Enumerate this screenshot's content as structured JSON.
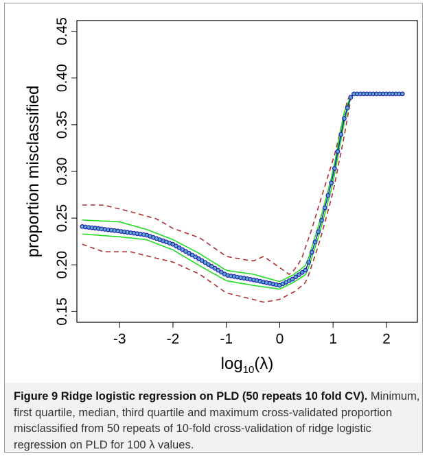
{
  "figure": {
    "label": "Figure 9",
    "title": "Ridge logistic regression on PLD (50 repeats 10 fold CV).",
    "caption": "Minimum, first quartile, median, third quartile and maximum cross-validated proportion misclassified from 50 repeats of 10-fold cross-validation of ridge logistic regression on PLD for 100 λ values."
  },
  "colors": {
    "median": "#1f1fb5",
    "median_marker_fill": "#5fa8c8",
    "quartile": "#22dd22",
    "extreme": "#aa3030",
    "frame": "#000000"
  },
  "chart_data": {
    "type": "line",
    "xlabel_base": "log",
    "xlabel_sub": "10",
    "xlabel_arg": "(λ)",
    "ylabel": "proportion misclassified",
    "xlim": [
      -3.7,
      2.3
    ],
    "ylim": [
      0.15,
      0.45
    ],
    "xticks": [
      -3,
      -2,
      -1,
      0,
      1,
      2
    ],
    "xtick_labels": [
      "-3",
      "-2",
      "-1",
      "0",
      "1",
      "2"
    ],
    "yticks": [
      0.15,
      0.2,
      0.25,
      0.3,
      0.35,
      0.4,
      0.45
    ],
    "ytick_labels": [
      "0.15",
      "0.20",
      "0.25",
      "0.30",
      "0.35",
      "0.40",
      "0.45"
    ],
    "grid": false,
    "legend": "none",
    "n_points": 100,
    "series": [
      {
        "role": "median",
        "style": "line-with-circles",
        "points": [
          [
            -3.7,
            0.241
          ],
          [
            -3.0,
            0.236
          ],
          [
            -2.5,
            0.232
          ],
          [
            -2.0,
            0.222
          ],
          [
            -1.5,
            0.206
          ],
          [
            -1.0,
            0.189
          ],
          [
            -0.5,
            0.184
          ],
          [
            0.0,
            0.178
          ],
          [
            0.25,
            0.185
          ],
          [
            0.5,
            0.195
          ],
          [
            0.75,
            0.24
          ],
          [
            1.0,
            0.295
          ],
          [
            1.2,
            0.355
          ],
          [
            1.35,
            0.383
          ],
          [
            2.3,
            0.383
          ]
        ]
      },
      {
        "role": "first-quartile",
        "style": "solid",
        "points": [
          [
            -3.7,
            0.233
          ],
          [
            -3.0,
            0.23
          ],
          [
            -2.5,
            0.227
          ],
          [
            -2.0,
            0.216
          ],
          [
            -1.5,
            0.199
          ],
          [
            -1.0,
            0.183
          ],
          [
            -0.5,
            0.178
          ],
          [
            0.0,
            0.174
          ],
          [
            0.25,
            0.181
          ],
          [
            0.5,
            0.19
          ],
          [
            0.75,
            0.234
          ],
          [
            1.0,
            0.288
          ],
          [
            1.2,
            0.35
          ],
          [
            1.35,
            0.383
          ],
          [
            2.3,
            0.383
          ]
        ]
      },
      {
        "role": "third-quartile",
        "style": "solid",
        "points": [
          [
            -3.7,
            0.248
          ],
          [
            -3.0,
            0.246
          ],
          [
            -2.5,
            0.238
          ],
          [
            -2.0,
            0.227
          ],
          [
            -1.5,
            0.212
          ],
          [
            -1.0,
            0.194
          ],
          [
            -0.5,
            0.19
          ],
          [
            0.0,
            0.182
          ],
          [
            0.25,
            0.189
          ],
          [
            0.5,
            0.2
          ],
          [
            0.75,
            0.246
          ],
          [
            1.0,
            0.3
          ],
          [
            1.2,
            0.362
          ],
          [
            1.35,
            0.383
          ],
          [
            2.3,
            0.383
          ]
        ]
      },
      {
        "role": "minimum",
        "style": "dashed",
        "points": [
          [
            -3.7,
            0.222
          ],
          [
            -3.3,
            0.214
          ],
          [
            -2.8,
            0.214
          ],
          [
            -2.3,
            0.207
          ],
          [
            -2.0,
            0.203
          ],
          [
            -1.5,
            0.19
          ],
          [
            -1.0,
            0.17
          ],
          [
            -0.5,
            0.163
          ],
          [
            -0.3,
            0.16
          ],
          [
            0.0,
            0.163
          ],
          [
            0.3,
            0.172
          ],
          [
            0.5,
            0.182
          ],
          [
            0.75,
            0.225
          ],
          [
            1.0,
            0.278
          ],
          [
            1.2,
            0.335
          ],
          [
            1.35,
            0.383
          ],
          [
            2.3,
            0.383
          ]
        ]
      },
      {
        "role": "maximum",
        "style": "dashed",
        "points": [
          [
            -3.7,
            0.264
          ],
          [
            -3.3,
            0.264
          ],
          [
            -2.8,
            0.257
          ],
          [
            -2.3,
            0.249
          ],
          [
            -2.0,
            0.239
          ],
          [
            -1.5,
            0.229
          ],
          [
            -1.0,
            0.209
          ],
          [
            -0.5,
            0.204
          ],
          [
            -0.3,
            0.209
          ],
          [
            0.0,
            0.197
          ],
          [
            0.2,
            0.189
          ],
          [
            0.4,
            0.205
          ],
          [
            0.6,
            0.238
          ],
          [
            0.85,
            0.285
          ],
          [
            1.05,
            0.322
          ],
          [
            1.2,
            0.36
          ],
          [
            1.3,
            0.383
          ],
          [
            2.3,
            0.383
          ]
        ]
      }
    ]
  }
}
